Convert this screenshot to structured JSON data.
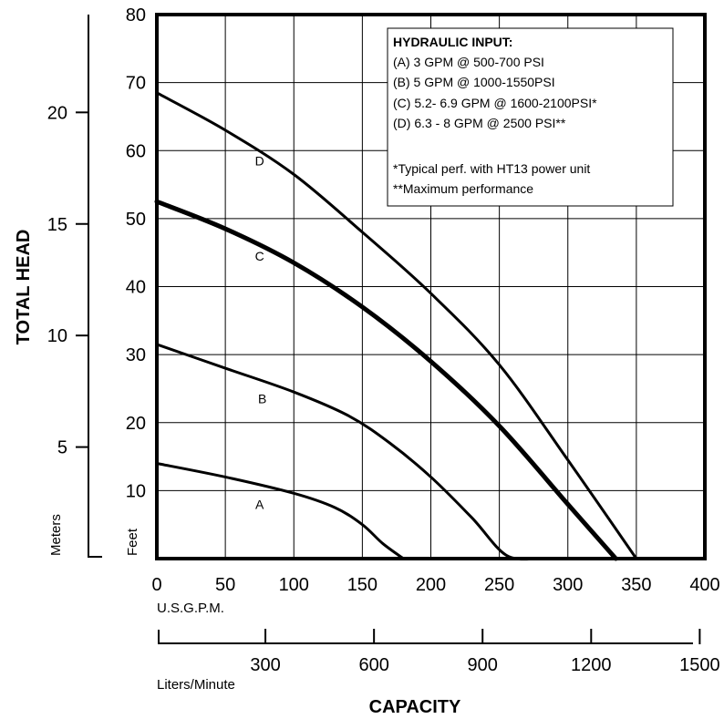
{
  "chart_data": {
    "type": "line",
    "xlabel": "CAPACITY",
    "ylabel": "TOTAL HEAD",
    "x_unit_primary": "U.S.G.P.M.",
    "x_unit_secondary": "Liters/Minute",
    "y_unit_feet": "Feet",
    "y_unit_meters": "Meters",
    "xlim": [
      0,
      400
    ],
    "ylim": [
      0,
      80
    ],
    "grid": true,
    "x_ticks": [
      "0",
      "50",
      "100",
      "150",
      "200",
      "250",
      "300",
      "350",
      "400"
    ],
    "x_tick_values": [
      0,
      50,
      100,
      150,
      200,
      250,
      300,
      350,
      400
    ],
    "lpm_ticks": [
      "300",
      "600",
      "900",
      "1200",
      "1500"
    ],
    "lpm_tick_values": [
      300,
      600,
      900,
      1200,
      1500
    ],
    "y_ticks_feet": [
      "10",
      "20",
      "30",
      "40",
      "50",
      "60",
      "70",
      "80"
    ],
    "y_tick_values_feet": [
      10,
      20,
      30,
      40,
      50,
      60,
      70,
      80
    ],
    "y_ticks_meters": [
      "5",
      "10",
      "15",
      "20"
    ],
    "y_tick_values_meters": [
      5,
      10,
      15,
      20
    ],
    "series": [
      {
        "name": "A",
        "label_at": [
          75,
          8
        ],
        "points": [
          [
            0,
            14
          ],
          [
            50,
            12
          ],
          [
            100,
            9.6
          ],
          [
            130,
            7.5
          ],
          [
            150,
            5
          ],
          [
            165,
            2.2
          ],
          [
            180,
            0
          ]
        ]
      },
      {
        "name": "B",
        "label_at": [
          77,
          23.5
        ],
        "points": [
          [
            0,
            31.5
          ],
          [
            50,
            28
          ],
          [
            100,
            24.5
          ],
          [
            140,
            21
          ],
          [
            170,
            17
          ],
          [
            200,
            12
          ],
          [
            230,
            6
          ],
          [
            255,
            0.5
          ],
          [
            278,
            0
          ]
        ]
      },
      {
        "name": "C",
        "label_at": [
          75,
          44.5
        ],
        "points": [
          [
            0,
            52.5
          ],
          [
            50,
            48.5
          ],
          [
            100,
            43.5
          ],
          [
            150,
            37
          ],
          [
            200,
            29
          ],
          [
            250,
            19.5
          ],
          [
            300,
            8
          ],
          [
            335,
            0
          ]
        ]
      },
      {
        "name": "D",
        "label_at": [
          75,
          58.5
        ],
        "points": [
          [
            0,
            68.5
          ],
          [
            50,
            63
          ],
          [
            100,
            56.5
          ],
          [
            150,
            48
          ],
          [
            200,
            39
          ],
          [
            250,
            28.5
          ],
          [
            300,
            14.5
          ],
          [
            350,
            0
          ]
        ]
      }
    ]
  },
  "legend": {
    "title": "HYDRAULIC INPUT:",
    "items": [
      "(A) 3 GPM @ 500-700 PSI",
      "(B) 5 GPM @ 1000-1550PSI",
      "(C) 5.2- 6.9 GPM @ 1600-2100PSI*",
      "(D) 6.3 - 8 GPM @ 2500 PSI**"
    ],
    "notes": [
      "*Typical perf. with HT13 power unit",
      "**Maximum performance"
    ]
  }
}
